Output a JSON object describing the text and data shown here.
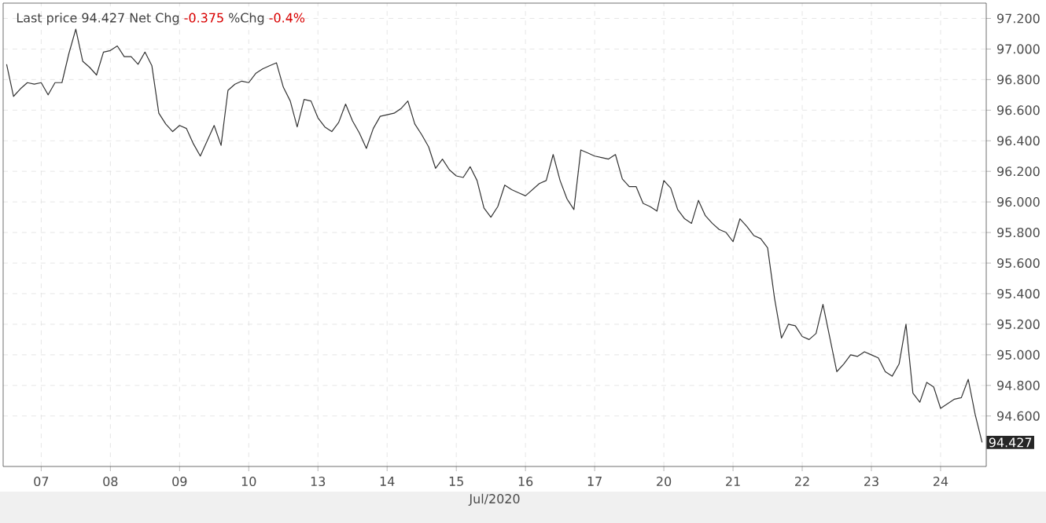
{
  "chart_data": {
    "type": "line",
    "annotations": [
      "Last price 94.427 Net Chg",
      "-0.375",
      "%Chg",
      "-0.4%",
      "94.427"
    ],
    "xlabel": "Jul/2020",
    "categories": [
      null,
      null,
      null,
      null,
      null,
      "07",
      null,
      null,
      null,
      null,
      null,
      null,
      null,
      null,
      null,
      "08",
      null,
      null,
      null,
      null,
      null,
      null,
      null,
      null,
      null,
      "09",
      null,
      null,
      null,
      null,
      null,
      null,
      null,
      null,
      null,
      "10",
      null,
      null,
      null,
      null,
      null,
      null,
      null,
      null,
      null,
      "13",
      null,
      null,
      null,
      null,
      null,
      null,
      null,
      null,
      null,
      "14",
      null,
      null,
      null,
      null,
      null,
      null,
      null,
      null,
      null,
      "15",
      null,
      null,
      null,
      null,
      null,
      null,
      null,
      null,
      null,
      "16",
      null,
      null,
      null,
      null,
      null,
      null,
      null,
      null,
      null,
      "17",
      null,
      null,
      null,
      null,
      null,
      null,
      null,
      null,
      null,
      "20",
      null,
      null,
      null,
      null,
      null,
      null,
      null,
      null,
      null,
      "21",
      null,
      null,
      null,
      null,
      null,
      null,
      null,
      null,
      null,
      "22",
      null,
      null,
      null,
      null,
      null,
      null,
      null,
      null,
      null,
      "23",
      null,
      null,
      null,
      null,
      null,
      null,
      null,
      null,
      null,
      "24",
      null,
      null,
      null,
      null,
      null,
      null
    ],
    "ylim": [
      94.27,
      97.3
    ],
    "yticks": [
      {
        "value": 94.6,
        "label": "94.600"
      },
      {
        "value": 94.8,
        "label": "94.800"
      },
      {
        "value": 95.0,
        "label": "95.000"
      },
      {
        "value": 95.2,
        "label": "95.200"
      },
      {
        "value": 95.4,
        "label": "95.400"
      },
      {
        "value": 95.6,
        "label": "95.600"
      },
      {
        "value": 95.8,
        "label": "95.800"
      },
      {
        "value": 96.0,
        "label": "96.000"
      },
      {
        "value": 96.2,
        "label": "96.200"
      },
      {
        "value": 96.4,
        "label": "96.400"
      },
      {
        "value": 96.6,
        "label": "96.600"
      },
      {
        "value": 96.8,
        "label": "96.800"
      },
      {
        "value": 97.0,
        "label": "97.000"
      },
      {
        "value": 97.2,
        "label": "97.200"
      }
    ],
    "grid": true,
    "series": [
      {
        "color": "#333333",
        "values": [
          96.9,
          96.69,
          96.74,
          96.78,
          96.77,
          96.78,
          96.7,
          96.78,
          96.78,
          96.97,
          97.13,
          96.92,
          96.88,
          96.83,
          96.98,
          96.99,
          97.02,
          96.95,
          96.95,
          96.9,
          96.98,
          96.89,
          96.58,
          96.51,
          96.46,
          96.5,
          96.48,
          96.38,
          96.3,
          96.4,
          96.5,
          96.37,
          96.73,
          96.77,
          96.79,
          96.78,
          96.84,
          96.87,
          96.89,
          96.91,
          96.75,
          96.66,
          96.49,
          96.67,
          96.66,
          96.55,
          96.49,
          96.46,
          96.52,
          96.64,
          96.53,
          96.45,
          96.35,
          96.48,
          96.56,
          96.57,
          96.58,
          96.61,
          96.66,
          96.51,
          96.44,
          96.36,
          96.22,
          96.28,
          96.21,
          96.17,
          96.16,
          96.23,
          96.14,
          95.96,
          95.9,
          95.97,
          96.11,
          96.08,
          96.06,
          96.04,
          96.08,
          96.12,
          96.14,
          96.31,
          96.14,
          96.02,
          95.95,
          96.34,
          96.32,
          96.3,
          96.29,
          96.28,
          96.31,
          96.15,
          96.1,
          96.1,
          95.99,
          95.97,
          95.94,
          96.14,
          96.09,
          95.95,
          95.89,
          95.86,
          96.01,
          95.91,
          95.86,
          95.82,
          95.8,
          95.74,
          95.89,
          95.84,
          95.78,
          95.76,
          95.7,
          95.37,
          95.11,
          95.2,
          95.19,
          95.12,
          95.1,
          95.14,
          95.33,
          95.11,
          94.89,
          94.94,
          95.0,
          94.99,
          95.02,
          95.0,
          94.98,
          94.89,
          94.86,
          94.94,
          95.2,
          94.75,
          94.69,
          94.82,
          94.79,
          94.65,
          94.68,
          94.71,
          94.72,
          94.84,
          94.61,
          94.427
        ]
      }
    ]
  }
}
